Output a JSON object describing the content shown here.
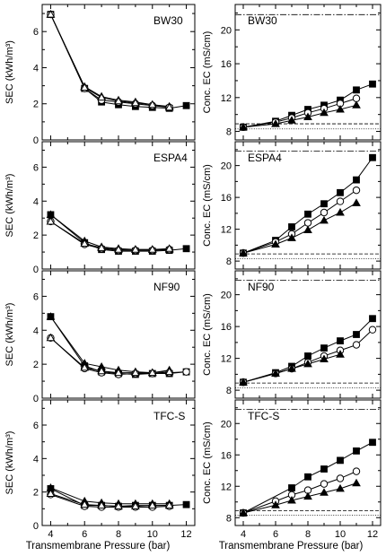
{
  "x_axis_title": "Transmembrane Pressure (bar)",
  "chart_data": [
    {
      "type": "line",
      "panel": "SEC",
      "membrane": "BW30",
      "ylabel": "SEC (kWh/m³)",
      "xlim": [
        3.5,
        12.5
      ],
      "ylim": [
        0,
        7.5
      ],
      "x_ticks": [
        4,
        6,
        8,
        10,
        12
      ],
      "y_ticks": [
        0,
        2,
        4,
        6
      ],
      "reference_lines": [],
      "series": [
        {
          "marker": "square-filled",
          "x": [
            4,
            6,
            7,
            8,
            9,
            10,
            11,
            12
          ],
          "y": [
            6.95,
            2.85,
            2.1,
            1.95,
            1.85,
            1.8,
            1.75,
            1.9
          ]
        },
        {
          "marker": "triangle-filled",
          "x": [
            4,
            6,
            7,
            8,
            9,
            10,
            11
          ],
          "y": [
            6.95,
            2.95,
            2.4,
            2.2,
            2.1,
            1.95,
            1.85
          ]
        },
        {
          "marker": "circle-open",
          "x": [
            4,
            6,
            7,
            8,
            9,
            10,
            11
          ],
          "y": [
            6.95,
            2.85,
            2.2,
            2.1,
            2.0,
            1.9,
            1.8
          ]
        },
        {
          "marker": "triangle-open",
          "x": [
            4,
            6,
            7,
            8,
            9,
            10,
            11
          ],
          "y": [
            6.95,
            2.9,
            2.35,
            2.15,
            2.05,
            1.95,
            1.8
          ]
        }
      ]
    },
    {
      "type": "line",
      "panel": "SEC",
      "membrane": "ESPA4",
      "ylabel": "SEC (kWh/m³)",
      "xlim": [
        3.5,
        12.5
      ],
      "ylim": [
        0,
        7.5
      ],
      "x_ticks": [
        4,
        6,
        8,
        10,
        12
      ],
      "y_ticks": [
        0,
        2,
        4,
        6
      ],
      "reference_lines": [],
      "series": [
        {
          "marker": "square-filled",
          "x": [
            4,
            6,
            7,
            8,
            9,
            10,
            11,
            12
          ],
          "y": [
            3.2,
            1.55,
            1.15,
            1.05,
            1.05,
            1.05,
            1.1,
            1.2
          ]
        },
        {
          "marker": "triangle-filled",
          "x": [
            4,
            6,
            7,
            8,
            9,
            10,
            11
          ],
          "y": [
            3.2,
            1.65,
            1.3,
            1.2,
            1.15,
            1.15,
            1.15
          ]
        },
        {
          "marker": "circle-open",
          "x": [
            4,
            6,
            7,
            8,
            9,
            10,
            11
          ],
          "y": [
            2.8,
            1.45,
            1.2,
            1.1,
            1.1,
            1.1,
            1.15
          ]
        },
        {
          "marker": "triangle-open",
          "x": [
            4,
            6,
            7,
            8,
            9,
            10,
            11
          ],
          "y": [
            2.8,
            1.5,
            1.25,
            1.15,
            1.15,
            1.15,
            1.2
          ]
        }
      ]
    },
    {
      "type": "line",
      "panel": "SEC",
      "membrane": "NF90",
      "ylabel": "SEC (kWh/m³)",
      "xlim": [
        3.5,
        12.5
      ],
      "ylim": [
        0,
        7.5
      ],
      "x_ticks": [
        4,
        6,
        8,
        10,
        12
      ],
      "y_ticks": [
        0,
        2,
        4,
        6
      ],
      "reference_lines": [],
      "series": [
        {
          "marker": "square-filled",
          "x": [
            4,
            6,
            7,
            8,
            9,
            10,
            11,
            12
          ],
          "y": [
            4.8,
            1.9,
            1.55,
            1.45,
            1.4,
            1.45,
            1.45,
            1.55
          ]
        },
        {
          "marker": "triangle-filled",
          "x": [
            4,
            6,
            7,
            8,
            9,
            10,
            11
          ],
          "y": [
            4.8,
            2.05,
            1.85,
            1.65,
            1.55,
            1.5,
            1.65
          ]
        },
        {
          "marker": "circle-open",
          "x": [
            4,
            6,
            7,
            8,
            9,
            10,
            11,
            12
          ],
          "y": [
            3.55,
            1.75,
            1.5,
            1.4,
            1.45,
            1.45,
            1.5,
            1.55
          ]
        },
        {
          "marker": "triangle-open",
          "x": [
            4,
            6,
            7,
            8,
            9,
            10,
            11
          ],
          "y": [
            3.55,
            1.8,
            1.6,
            1.5,
            1.5,
            1.5,
            1.55
          ]
        }
      ]
    },
    {
      "type": "line",
      "panel": "SEC",
      "membrane": "TFC-S",
      "ylabel": "SEC (kWh/m³)",
      "xlim": [
        3.5,
        12.5
      ],
      "ylim": [
        0,
        7.5
      ],
      "x_ticks": [
        4,
        6,
        8,
        10,
        12
      ],
      "y_ticks": [
        0,
        2,
        4,
        6
      ],
      "reference_lines": [],
      "series": [
        {
          "marker": "square-filled",
          "x": [
            4,
            6,
            7,
            8,
            9,
            10,
            11,
            12
          ],
          "y": [
            2.2,
            1.2,
            1.2,
            1.15,
            1.2,
            1.2,
            1.2,
            1.25
          ]
        },
        {
          "marker": "triangle-filled",
          "x": [
            4,
            6,
            7,
            8,
            9,
            10,
            11
          ],
          "y": [
            2.25,
            1.45,
            1.35,
            1.3,
            1.3,
            1.3,
            1.3
          ]
        },
        {
          "marker": "circle-open",
          "x": [
            4,
            6,
            7,
            8,
            9,
            10,
            11
          ],
          "y": [
            1.85,
            1.15,
            1.1,
            1.1,
            1.1,
            1.1,
            1.15
          ]
        },
        {
          "marker": "triangle-open",
          "x": [
            4,
            6,
            7,
            8,
            9,
            10,
            11
          ],
          "y": [
            1.9,
            1.25,
            1.2,
            1.15,
            1.15,
            1.2,
            1.2
          ]
        }
      ]
    },
    {
      "type": "line",
      "panel": "Conc. EC",
      "membrane": "BW30",
      "ylabel": "Conc. EC (mS/cm)",
      "xlim": [
        3.5,
        12.5
      ],
      "ylim": [
        7,
        23
      ],
      "x_ticks": [
        4,
        6,
        8,
        10,
        12
      ],
      "y_ticks": [
        8,
        12,
        16,
        20
      ],
      "reference_lines": [
        {
          "y": 21.8,
          "style": "dash-dot"
        },
        {
          "y": 8.9,
          "style": "dashed"
        },
        {
          "y": 8.3,
          "style": "dotted"
        }
      ],
      "series": [
        {
          "marker": "square-filled",
          "x": [
            4,
            6,
            7,
            8,
            9,
            10,
            11,
            12
          ],
          "y": [
            8.5,
            9.2,
            9.9,
            10.6,
            11.1,
            11.7,
            12.9,
            13.6
          ]
        },
        {
          "marker": "circle-open",
          "x": [
            4,
            6,
            7,
            8,
            9,
            10,
            11
          ],
          "y": [
            8.5,
            9.1,
            9.6,
            10.2,
            10.7,
            11.3,
            11.9
          ]
        },
        {
          "marker": "triangle-filled",
          "x": [
            4,
            6,
            7,
            8,
            9,
            10,
            11
          ],
          "y": [
            8.5,
            8.9,
            9.3,
            9.7,
            10.2,
            10.6,
            11.1
          ]
        }
      ]
    },
    {
      "type": "line",
      "panel": "Conc. EC",
      "membrane": "ESPA4",
      "ylabel": "Conc. EC (mS/cm)",
      "xlim": [
        3.5,
        12.5
      ],
      "ylim": [
        7,
        23
      ],
      "x_ticks": [
        4,
        6,
        8,
        10,
        12
      ],
      "y_ticks": [
        8,
        12,
        16,
        20
      ],
      "reference_lines": [
        {
          "y": 21.8,
          "style": "dash-dot"
        },
        {
          "y": 8.9,
          "style": "dashed"
        },
        {
          "y": 8.3,
          "style": "dotted"
        }
      ],
      "series": [
        {
          "marker": "square-filled",
          "x": [
            4,
            6,
            7,
            8,
            9,
            10,
            11,
            12
          ],
          "y": [
            9.0,
            10.6,
            12.3,
            13.9,
            15.2,
            16.6,
            18.2,
            21.0
          ]
        },
        {
          "marker": "circle-open",
          "x": [
            4,
            6,
            7,
            8,
            9,
            10,
            11
          ],
          "y": [
            9.0,
            10.4,
            11.4,
            12.8,
            14.1,
            15.5,
            16.9
          ]
        },
        {
          "marker": "triangle-filled",
          "x": [
            4,
            6,
            7,
            8,
            9,
            10,
            11
          ],
          "y": [
            9.0,
            10.1,
            10.9,
            11.9,
            13.1,
            14.1,
            15.3
          ]
        }
      ]
    },
    {
      "type": "line",
      "panel": "Conc. EC",
      "membrane": "NF90",
      "ylabel": "Conc. EC (mS/cm)",
      "xlim": [
        3.5,
        12.5
      ],
      "ylim": [
        7,
        23
      ],
      "x_ticks": [
        4,
        6,
        8,
        10,
        12
      ],
      "y_ticks": [
        8,
        12,
        16,
        20
      ],
      "reference_lines": [
        {
          "y": 21.8,
          "style": "dash-dot"
        },
        {
          "y": 8.9,
          "style": "dashed"
        },
        {
          "y": 8.3,
          "style": "dotted"
        }
      ],
      "series": [
        {
          "marker": "square-filled",
          "x": [
            4,
            6,
            7,
            8,
            9,
            10,
            11,
            12
          ],
          "y": [
            9.0,
            10.2,
            11.0,
            12.3,
            13.3,
            14.2,
            15.0,
            17.0
          ]
        },
        {
          "marker": "circle-open",
          "x": [
            4,
            6,
            7,
            8,
            9,
            10,
            11,
            12
          ],
          "y": [
            9.0,
            10.1,
            10.7,
            11.5,
            12.3,
            13.0,
            13.7,
            15.6
          ]
        },
        {
          "marker": "triangle-filled",
          "x": [
            4,
            6,
            7,
            8,
            9,
            10
          ],
          "y": [
            9.0,
            10.1,
            10.7,
            11.3,
            11.9,
            12.5
          ]
        }
      ]
    },
    {
      "type": "line",
      "panel": "Conc. EC",
      "membrane": "TFC-S",
      "ylabel": "Conc. EC (mS/cm)",
      "xlim": [
        3.5,
        12.5
      ],
      "ylim": [
        7,
        23
      ],
      "x_ticks": [
        4,
        6,
        8,
        10,
        12
      ],
      "y_ticks": [
        8,
        12,
        16,
        20
      ],
      "reference_lines": [
        {
          "y": 21.8,
          "style": "dash-dot"
        },
        {
          "y": 8.9,
          "style": "dashed"
        },
        {
          "y": 8.3,
          "style": "dotted"
        }
      ],
      "series": [
        {
          "marker": "square-filled",
          "x": [
            4,
            7,
            8,
            9,
            10,
            11,
            12
          ],
          "y": [
            8.6,
            11.8,
            13.2,
            14.2,
            15.3,
            16.5,
            17.6
          ]
        },
        {
          "marker": "circle-open",
          "x": [
            4,
            6,
            7,
            8,
            9,
            10,
            11
          ],
          "y": [
            8.6,
            10.1,
            10.9,
            11.5,
            12.3,
            13.0,
            13.9
          ]
        },
        {
          "marker": "triangle-filled",
          "x": [
            4,
            6,
            7,
            8,
            9,
            10,
            11
          ],
          "y": [
            8.6,
            9.6,
            10.2,
            10.7,
            11.2,
            11.7,
            12.4
          ]
        }
      ]
    }
  ]
}
